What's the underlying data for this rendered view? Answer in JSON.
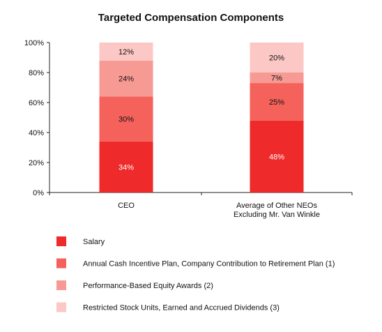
{
  "chart_data": {
    "type": "bar",
    "stacked": true,
    "title": "Targeted Compensation Components",
    "categories": [
      [
        "CEO"
      ],
      [
        "Average of Other NEOs",
        "Excluding Mr. Van Winkle"
      ]
    ],
    "ylim": [
      0,
      100
    ],
    "yticks": [
      0,
      20,
      40,
      60,
      80,
      100
    ],
    "ytick_suffix": "%",
    "series": [
      {
        "name": "Salary",
        "color": "#ee2a2a",
        "label_color": "#ffffff",
        "values": [
          34,
          48
        ]
      },
      {
        "name": "Annual Cash Incentive Plan, Company Contribution to Retirement Plan (1)",
        "color": "#f4625b",
        "label_color": "#111111",
        "values": [
          30,
          25
        ]
      },
      {
        "name": "Performance-Based Equity Awards (2)",
        "color": "#f89a94",
        "label_color": "#111111",
        "values": [
          24,
          7
        ]
      },
      {
        "name": "Restricted Stock Units, Earned and Accrued Dividends (3)",
        "color": "#fcc8c5",
        "label_color": "#111111",
        "values": [
          12,
          20
        ]
      }
    ],
    "legend_position": "bottom",
    "grid": false
  }
}
